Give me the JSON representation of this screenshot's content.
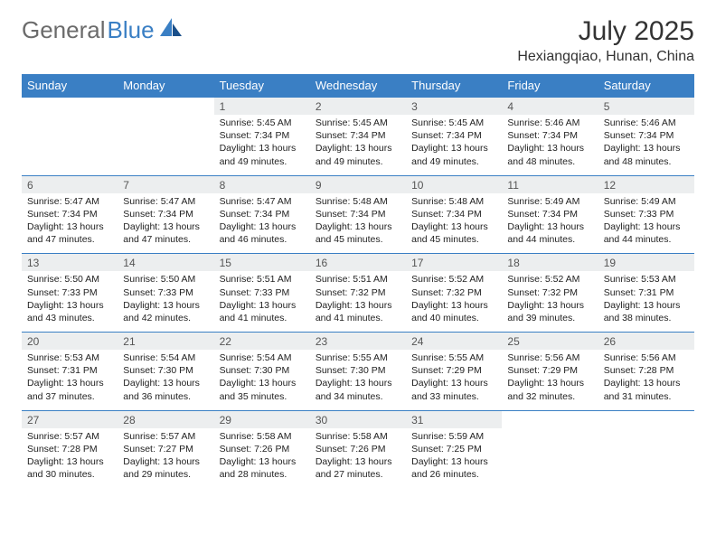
{
  "logo": {
    "text1": "General",
    "text2": "Blue"
  },
  "title": "July 2025",
  "location": "Hexiangqiao, Hunan, China",
  "colors": {
    "header_bg": "#3a7fc4",
    "header_text": "#ffffff",
    "daynum_bg": "#eceeef",
    "border": "#3a7fc4",
    "logo_gray": "#6b6b6b",
    "logo_blue": "#3a7fc4"
  },
  "day_headers": [
    "Sunday",
    "Monday",
    "Tuesday",
    "Wednesday",
    "Thursday",
    "Friday",
    "Saturday"
  ],
  "weeks": [
    [
      null,
      null,
      {
        "n": "1",
        "sr": "5:45 AM",
        "ss": "7:34 PM",
        "dl": "13 hours and 49 minutes."
      },
      {
        "n": "2",
        "sr": "5:45 AM",
        "ss": "7:34 PM",
        "dl": "13 hours and 49 minutes."
      },
      {
        "n": "3",
        "sr": "5:45 AM",
        "ss": "7:34 PM",
        "dl": "13 hours and 49 minutes."
      },
      {
        "n": "4",
        "sr": "5:46 AM",
        "ss": "7:34 PM",
        "dl": "13 hours and 48 minutes."
      },
      {
        "n": "5",
        "sr": "5:46 AM",
        "ss": "7:34 PM",
        "dl": "13 hours and 48 minutes."
      }
    ],
    [
      {
        "n": "6",
        "sr": "5:47 AM",
        "ss": "7:34 PM",
        "dl": "13 hours and 47 minutes."
      },
      {
        "n": "7",
        "sr": "5:47 AM",
        "ss": "7:34 PM",
        "dl": "13 hours and 47 minutes."
      },
      {
        "n": "8",
        "sr": "5:47 AM",
        "ss": "7:34 PM",
        "dl": "13 hours and 46 minutes."
      },
      {
        "n": "9",
        "sr": "5:48 AM",
        "ss": "7:34 PM",
        "dl": "13 hours and 45 minutes."
      },
      {
        "n": "10",
        "sr": "5:48 AM",
        "ss": "7:34 PM",
        "dl": "13 hours and 45 minutes."
      },
      {
        "n": "11",
        "sr": "5:49 AM",
        "ss": "7:34 PM",
        "dl": "13 hours and 44 minutes."
      },
      {
        "n": "12",
        "sr": "5:49 AM",
        "ss": "7:33 PM",
        "dl": "13 hours and 44 minutes."
      }
    ],
    [
      {
        "n": "13",
        "sr": "5:50 AM",
        "ss": "7:33 PM",
        "dl": "13 hours and 43 minutes."
      },
      {
        "n": "14",
        "sr": "5:50 AM",
        "ss": "7:33 PM",
        "dl": "13 hours and 42 minutes."
      },
      {
        "n": "15",
        "sr": "5:51 AM",
        "ss": "7:33 PM",
        "dl": "13 hours and 41 minutes."
      },
      {
        "n": "16",
        "sr": "5:51 AM",
        "ss": "7:32 PM",
        "dl": "13 hours and 41 minutes."
      },
      {
        "n": "17",
        "sr": "5:52 AM",
        "ss": "7:32 PM",
        "dl": "13 hours and 40 minutes."
      },
      {
        "n": "18",
        "sr": "5:52 AM",
        "ss": "7:32 PM",
        "dl": "13 hours and 39 minutes."
      },
      {
        "n": "19",
        "sr": "5:53 AM",
        "ss": "7:31 PM",
        "dl": "13 hours and 38 minutes."
      }
    ],
    [
      {
        "n": "20",
        "sr": "5:53 AM",
        "ss": "7:31 PM",
        "dl": "13 hours and 37 minutes."
      },
      {
        "n": "21",
        "sr": "5:54 AM",
        "ss": "7:30 PM",
        "dl": "13 hours and 36 minutes."
      },
      {
        "n": "22",
        "sr": "5:54 AM",
        "ss": "7:30 PM",
        "dl": "13 hours and 35 minutes."
      },
      {
        "n": "23",
        "sr": "5:55 AM",
        "ss": "7:30 PM",
        "dl": "13 hours and 34 minutes."
      },
      {
        "n": "24",
        "sr": "5:55 AM",
        "ss": "7:29 PM",
        "dl": "13 hours and 33 minutes."
      },
      {
        "n": "25",
        "sr": "5:56 AM",
        "ss": "7:29 PM",
        "dl": "13 hours and 32 minutes."
      },
      {
        "n": "26",
        "sr": "5:56 AM",
        "ss": "7:28 PM",
        "dl": "13 hours and 31 minutes."
      }
    ],
    [
      {
        "n": "27",
        "sr": "5:57 AM",
        "ss": "7:28 PM",
        "dl": "13 hours and 30 minutes."
      },
      {
        "n": "28",
        "sr": "5:57 AM",
        "ss": "7:27 PM",
        "dl": "13 hours and 29 minutes."
      },
      {
        "n": "29",
        "sr": "5:58 AM",
        "ss": "7:26 PM",
        "dl": "13 hours and 28 minutes."
      },
      {
        "n": "30",
        "sr": "5:58 AM",
        "ss": "7:26 PM",
        "dl": "13 hours and 27 minutes."
      },
      {
        "n": "31",
        "sr": "5:59 AM",
        "ss": "7:25 PM",
        "dl": "13 hours and 26 minutes."
      },
      null,
      null
    ]
  ],
  "labels": {
    "sunrise": "Sunrise: ",
    "sunset": "Sunset: ",
    "daylight": "Daylight: "
  }
}
